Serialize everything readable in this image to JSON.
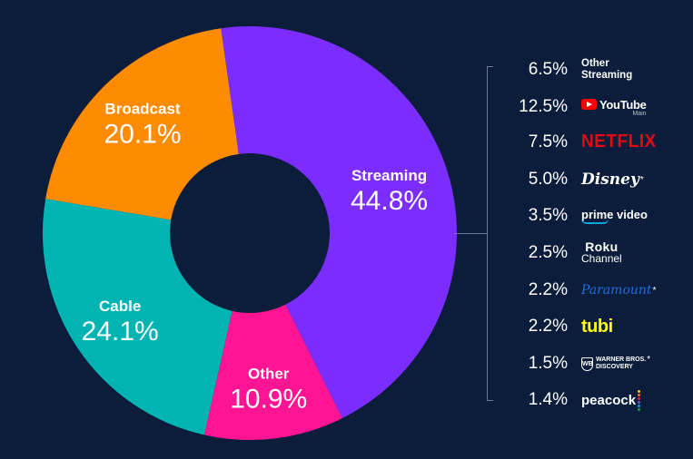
{
  "chart_data": {
    "type": "pie",
    "donut": true,
    "slices": [
      {
        "label": "Streaming",
        "value": 44.8,
        "value_label": "44.8%",
        "color": "#7b2dff"
      },
      {
        "label": "Other",
        "value": 10.9,
        "value_label": "10.9%",
        "color": "#ff1493"
      },
      {
        "label": "Cable",
        "value": 24.1,
        "value_label": "24.1%",
        "color": "#00b4b4"
      },
      {
        "label": "Broadcast",
        "value": 20.1,
        "value_label": "20.1%",
        "color": "#ff8c00"
      }
    ],
    "breakdown_of": "Streaming",
    "breakdown": [
      {
        "value": 6.5,
        "value_label": "6.5%",
        "brand": "Other Streaming",
        "icon": "other-streaming-logo"
      },
      {
        "value": 12.5,
        "value_label": "12.5%",
        "brand": "YouTube",
        "sub": "Main",
        "icon": "youtube-logo"
      },
      {
        "value": 7.5,
        "value_label": "7.5%",
        "brand": "NETFLIX",
        "icon": "netflix-logo"
      },
      {
        "value": 5.0,
        "value_label": "5.0%",
        "brand": "Disney",
        "note": "*",
        "icon": "disney-logo"
      },
      {
        "value": 3.5,
        "value_label": "3.5%",
        "brand": "prime video",
        "icon": "prime-video-logo"
      },
      {
        "value": 2.5,
        "value_label": "2.5%",
        "brand": "Roku",
        "sub": "Channel",
        "icon": "roku-channel-logo"
      },
      {
        "value": 2.2,
        "value_label": "2.2%",
        "brand": "Paramount",
        "note": "*",
        "icon": "paramount-logo"
      },
      {
        "value": 2.2,
        "value_label": "2.2%",
        "brand": "tubi",
        "icon": "tubi-logo"
      },
      {
        "value": 1.5,
        "value_label": "1.5%",
        "brand": "WARNER BROS.",
        "sub": "DISCOVERY",
        "note": "*",
        "icon": "warner-bros-discovery-logo"
      },
      {
        "value": 1.4,
        "value_label": "1.4%",
        "brand": "peacock",
        "icon": "peacock-logo"
      }
    ]
  },
  "colors": {
    "background": "#0b1d3a",
    "youtube_red": "#ff0000",
    "netflix_red": "#e50914",
    "paramount_blue": "#1d6fe0",
    "tubi_yellow": "#ffff13",
    "prime_blue": "#00a8e1"
  }
}
